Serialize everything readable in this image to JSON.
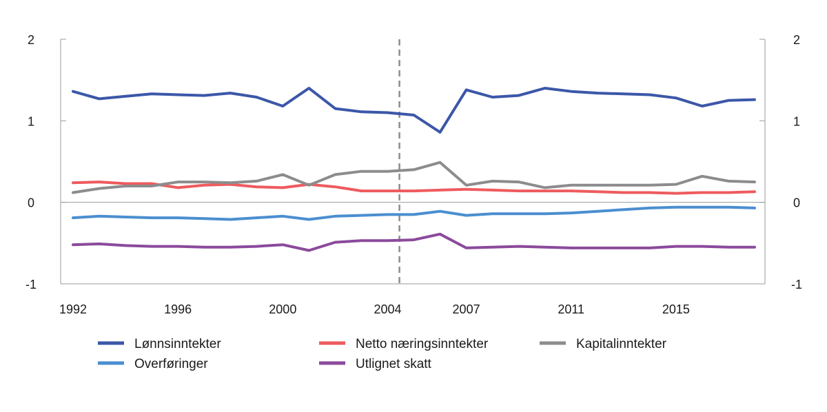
{
  "chart_data": {
    "type": "line",
    "x": [
      1992,
      1993,
      1994,
      1995,
      1996,
      1997,
      1998,
      1999,
      2000,
      2001,
      2002,
      2003,
      2004,
      2005,
      2006,
      2007,
      2008,
      2009,
      2010,
      2011,
      2012,
      2013,
      2014,
      2015,
      2016,
      2017,
      2018
    ],
    "x_tick_labels": [
      "1992",
      "1996",
      "2000",
      "2004",
      "2007",
      "2011",
      "2015"
    ],
    "x_tick_values": [
      1992,
      1996,
      2000,
      2004,
      2007,
      2011,
      2015
    ],
    "ylim": [
      -1,
      2
    ],
    "y_ticks_left": [
      "2",
      "1",
      "0",
      "-1"
    ],
    "y_ticks_right": [
      "2",
      "1",
      "0",
      "-1"
    ],
    "grid": false,
    "vertical_marker_x": 2004.45,
    "legend_position": "bottom",
    "series": [
      {
        "name": "Lønnsinntekter",
        "color": "#3b57a8",
        "values": [
          1.36,
          1.27,
          1.3,
          1.33,
          1.32,
          1.31,
          1.34,
          1.29,
          1.18,
          1.4,
          1.15,
          1.11,
          1.1,
          1.07,
          0.86,
          1.38,
          1.29,
          1.31,
          1.4,
          1.36,
          1.34,
          1.33,
          1.32,
          1.28,
          1.18,
          1.25,
          1.26
        ]
      },
      {
        "name": "Netto næringsinntekter",
        "color": "#ee5b5e",
        "values": [
          0.24,
          0.25,
          0.23,
          0.23,
          0.18,
          0.21,
          0.22,
          0.19,
          0.18,
          0.22,
          0.19,
          0.14,
          0.14,
          0.14,
          0.15,
          0.16,
          0.15,
          0.14,
          0.14,
          0.14,
          0.13,
          0.12,
          0.12,
          0.11,
          0.12,
          0.12,
          0.13
        ]
      },
      {
        "name": "Kapitalinntekter",
        "color": "#8c8c8e",
        "values": [
          0.12,
          0.17,
          0.2,
          0.2,
          0.25,
          0.25,
          0.24,
          0.26,
          0.34,
          0.21,
          0.34,
          0.38,
          0.38,
          0.4,
          0.49,
          0.21,
          0.26,
          0.25,
          0.18,
          0.21,
          0.21,
          0.21,
          0.21,
          0.22,
          0.32,
          0.26,
          0.25
        ]
      },
      {
        "name": "Overføringer",
        "color": "#4b8ed0",
        "values": [
          -0.19,
          -0.17,
          -0.18,
          -0.19,
          -0.19,
          -0.2,
          -0.21,
          -0.19,
          -0.17,
          -0.21,
          -0.17,
          -0.16,
          -0.15,
          -0.15,
          -0.11,
          -0.16,
          -0.14,
          -0.14,
          -0.14,
          -0.13,
          -0.11,
          -0.09,
          -0.07,
          -0.06,
          -0.06,
          -0.06,
          -0.07
        ]
      },
      {
        "name": "Utlignet skatt",
        "color": "#8b4a9c",
        "values": [
          -0.52,
          -0.51,
          -0.53,
          -0.54,
          -0.54,
          -0.55,
          -0.55,
          -0.54,
          -0.52,
          -0.59,
          -0.49,
          -0.47,
          -0.47,
          -0.46,
          -0.39,
          -0.56,
          -0.55,
          -0.54,
          -0.55,
          -0.56,
          -0.56,
          -0.56,
          -0.56,
          -0.54,
          -0.54,
          -0.55,
          -0.55
        ]
      }
    ]
  }
}
